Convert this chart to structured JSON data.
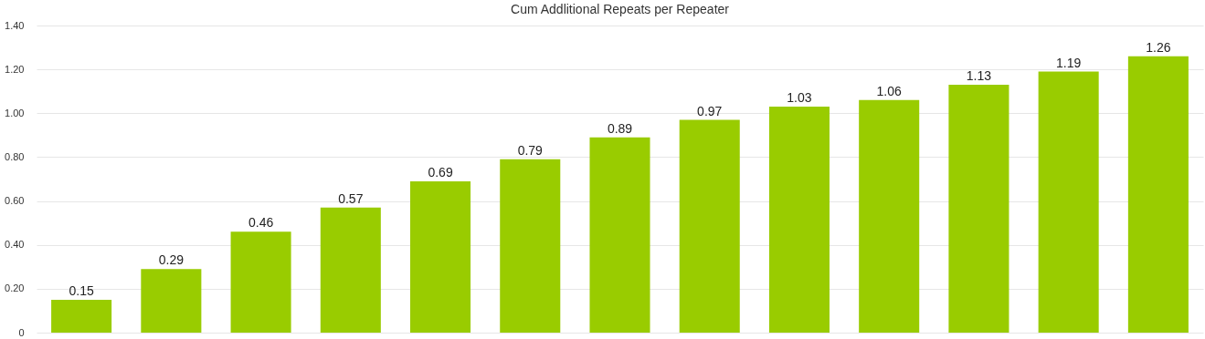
{
  "chart_data": {
    "type": "bar",
    "title": "Cum Addlitional Repeats per Repeater",
    "categories": [
      null,
      null,
      null,
      null,
      null,
      null,
      null,
      null,
      null,
      null,
      null,
      null,
      null
    ],
    "values": [
      0.15,
      0.29,
      0.46,
      0.57,
      0.69,
      0.79,
      0.89,
      0.97,
      1.03,
      1.06,
      1.13,
      1.19,
      1.26
    ],
    "color": "#99cc00",
    "ylim": [
      0,
      1.4
    ],
    "yticks": [
      0,
      {
        "value": 0.2,
        "label": "0.20"
      },
      {
        "value": 0.4,
        "label": "0.40"
      },
      {
        "value": 0.6,
        "label": "0.60"
      },
      {
        "value": 0.8,
        "label": "0.80"
      },
      {
        "value": 1.0,
        "label": "1.00"
      },
      {
        "value": 1.2,
        "label": "1.20"
      },
      {
        "value": 1.4,
        "label": "1.40"
      }
    ],
    "grid": "y",
    "data_labels": true,
    "tick_labels": "y"
  }
}
